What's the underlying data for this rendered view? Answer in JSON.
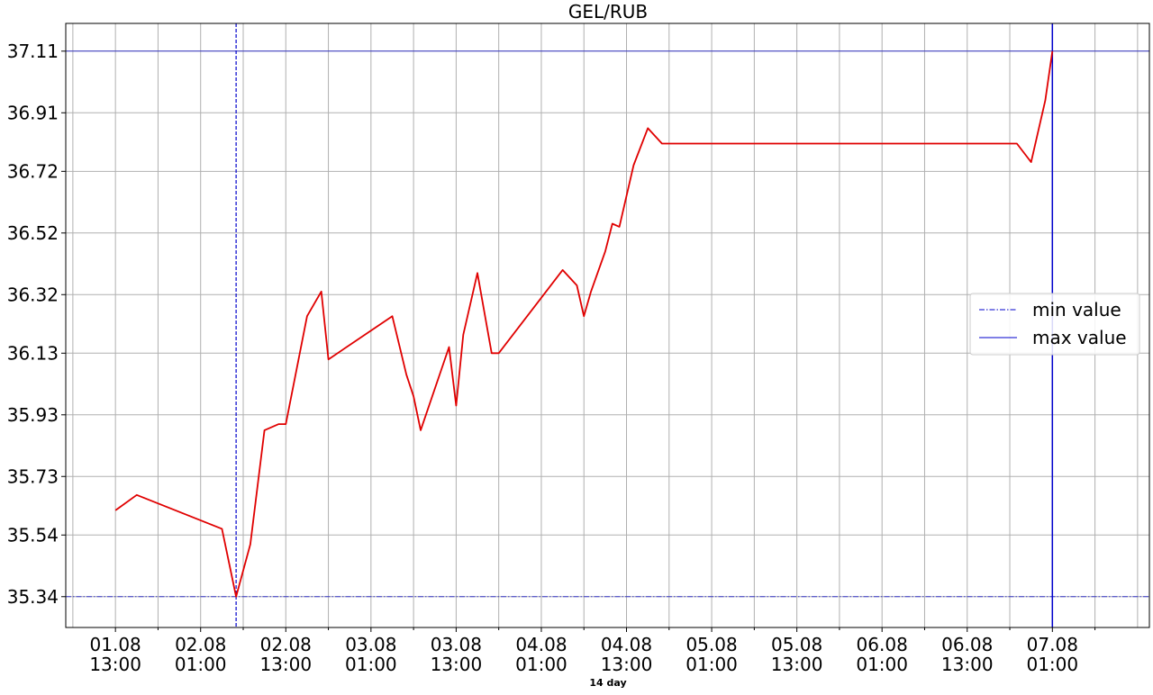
{
  "chart_data": {
    "type": "line",
    "title": "GEL/RUB",
    "xlabel": "14 day",
    "ylabel": "",
    "y_ticks": [
      "35.34",
      "35.54",
      "35.73",
      "35.93",
      "36.13",
      "36.32",
      "36.52",
      "36.72",
      "36.91",
      "37.11"
    ],
    "ylim": [
      35.24,
      37.2
    ],
    "x_ticks": [
      [
        "01.08",
        "13:00"
      ],
      [
        "02.08",
        "01:00"
      ],
      [
        "02.08",
        "13:00"
      ],
      [
        "03.08",
        "01:00"
      ],
      [
        "03.08",
        "13:00"
      ],
      [
        "04.08",
        "01:00"
      ],
      [
        "04.08",
        "13:00"
      ],
      [
        "05.08",
        "01:00"
      ],
      [
        "05.08",
        "13:00"
      ],
      [
        "06.08",
        "01:00"
      ],
      [
        "06.08",
        "13:00"
      ],
      [
        "07.08",
        "01:00"
      ]
    ],
    "x_tick_values": [
      "2023-08-01 13:00",
      "2023-08-02 01:00",
      "2023-08-02 13:00",
      "2023-08-03 01:00",
      "2023-08-03 13:00",
      "2023-08-04 01:00",
      "2023-08-04 13:00",
      "2023-08-05 01:00",
      "2023-08-05 13:00",
      "2023-08-06 01:00",
      "2023-08-06 13:00",
      "2023-08-07 01:00"
    ],
    "xlim": [
      "2023-08-01 06:00",
      "2023-08-07 14:40"
    ],
    "grid": true,
    "legend_position": "center-right",
    "series": [
      {
        "name": "",
        "color": "#e00000",
        "x": [
          "2023-08-01 13:00",
          "2023-08-01 16:00",
          "2023-08-02 04:00",
          "2023-08-02 06:00",
          "2023-08-02 08:00",
          "2023-08-02 10:00",
          "2023-08-02 12:00",
          "2023-08-02 13:00",
          "2023-08-02 16:00",
          "2023-08-02 18:00",
          "2023-08-02 19:00",
          "2023-08-03 04:00",
          "2023-08-03 06:00",
          "2023-08-03 07:00",
          "2023-08-03 08:00",
          "2023-08-03 12:00",
          "2023-08-03 13:00",
          "2023-08-03 14:00",
          "2023-08-03 16:00",
          "2023-08-03 18:00",
          "2023-08-03 19:00",
          "2023-08-04 04:00",
          "2023-08-04 06:00",
          "2023-08-04 07:00",
          "2023-08-04 08:00",
          "2023-08-04 10:00",
          "2023-08-04 11:00",
          "2023-08-04 12:00",
          "2023-08-04 14:00",
          "2023-08-04 16:00",
          "2023-08-04 18:00",
          "2023-08-06 20:00",
          "2023-08-06 22:00",
          "2023-08-07 00:00",
          "2023-08-07 01:00"
        ],
        "y": [
          35.62,
          35.67,
          35.56,
          35.34,
          35.51,
          35.88,
          35.9,
          35.9,
          36.25,
          36.33,
          36.11,
          36.25,
          36.06,
          35.99,
          35.88,
          36.15,
          35.96,
          36.19,
          36.39,
          36.13,
          36.13,
          36.4,
          36.35,
          36.25,
          36.33,
          36.46,
          36.55,
          36.54,
          36.74,
          36.86,
          36.81,
          36.81,
          36.75,
          36.95,
          37.11
        ]
      }
    ],
    "reference_lines": [
      {
        "name": "min value",
        "style": "dash-dot",
        "color": "#0000cc",
        "y": 35.34,
        "x": "2023-08-02 06:00"
      },
      {
        "name": "max value",
        "style": "solid",
        "color": "#0000cc",
        "y": 37.11,
        "x": "2023-08-07 01:00"
      }
    ]
  }
}
